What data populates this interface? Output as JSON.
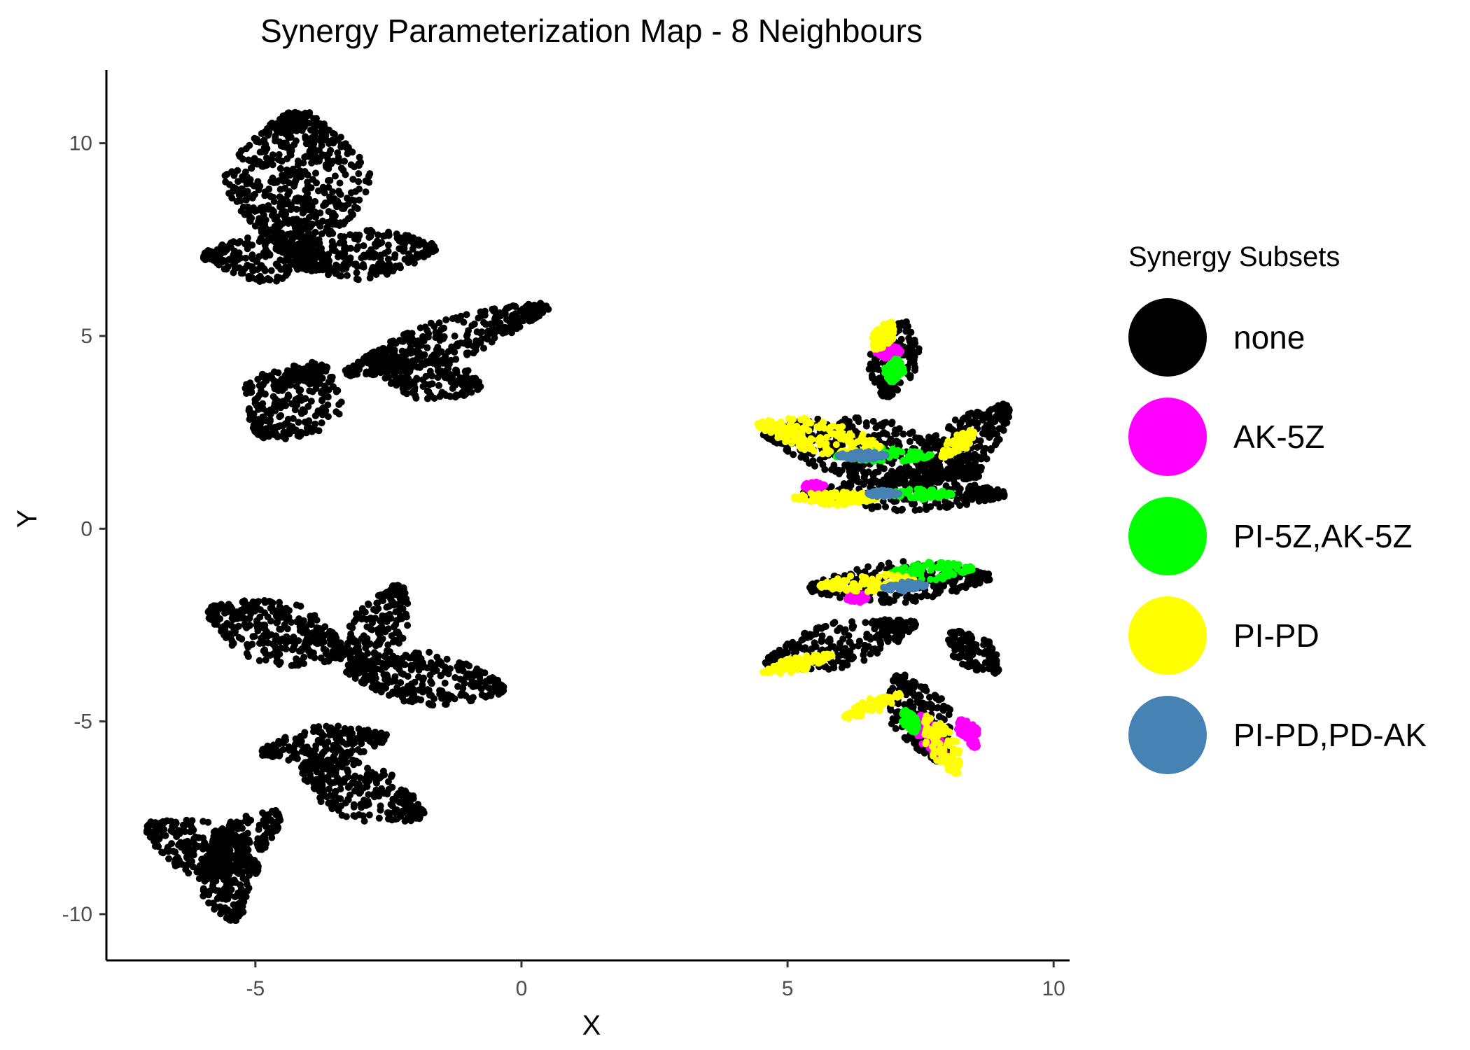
{
  "chart_data": {
    "type": "scatter",
    "title": "Synergy Parameterization Map - 8 Neighbours",
    "xlabel": "X",
    "ylabel": "Y",
    "xlim": [
      -7.8,
      10.3
    ],
    "ylim": [
      -11.2,
      11.9
    ],
    "x_ticks": [
      -5,
      0,
      5,
      10
    ],
    "y_ticks": [
      -10,
      -5,
      0,
      5,
      10
    ],
    "x_tick_labels": [
      "-5",
      "0",
      "5",
      "10"
    ],
    "y_tick_labels": [
      "-10",
      "-5",
      "0",
      "5",
      "10"
    ],
    "grid": false,
    "legend": {
      "title": "Synergy Subsets",
      "position": "right",
      "entries": [
        {
          "label": "none",
          "color": "#000000"
        },
        {
          "label": "AK-5Z",
          "color": "#FF00FF"
        },
        {
          "label": "PI-5Z,AK-5Z",
          "color": "#00FF00"
        },
        {
          "label": "PI-PD",
          "color": "#FFFF00"
        },
        {
          "label": "PI-PD,PD-AK",
          "color": "#4682B4"
        }
      ]
    },
    "series": [
      {
        "name": "none",
        "color": "#000000",
        "clusters": [
          {
            "center": [
              -4.2,
              9.0
            ],
            "angle": 90,
            "length": 3.6,
            "width": 2.8
          },
          {
            "center": [
              -4.8,
              7.0
            ],
            "angle": 175,
            "length": 2.4,
            "width": 1.2
          },
          {
            "center": [
              -2.9,
              7.1
            ],
            "angle": 10,
            "length": 2.6,
            "width": 1.3
          },
          {
            "center": [
              -1.4,
              4.9
            ],
            "angle": 25,
            "length": 4.2,
            "width": 1.1
          },
          {
            "center": [
              -1.8,
              4.0
            ],
            "angle": -20,
            "length": 2.2,
            "width": 1.3
          },
          {
            "center": [
              -4.3,
              3.3
            ],
            "angle": -120,
            "length": 2.2,
            "width": 2.0
          },
          {
            "center": [
              -4.6,
              -2.7
            ],
            "angle": -25,
            "length": 2.8,
            "width": 1.7
          },
          {
            "center": [
              -2.7,
              -2.6
            ],
            "angle": 70,
            "length": 2.4,
            "width": 1.1
          },
          {
            "center": [
              -1.8,
              -3.9
            ],
            "angle": -10,
            "length": 3.0,
            "width": 1.4
          },
          {
            "center": [
              -3.7,
              -5.6
            ],
            "angle": 10,
            "length": 2.4,
            "width": 1.0
          },
          {
            "center": [
              -3.0,
              -6.8
            ],
            "angle": -30,
            "length": 2.6,
            "width": 1.6
          },
          {
            "center": [
              -6.0,
              -8.3
            ],
            "angle": 150,
            "length": 2.4,
            "width": 1.4
          },
          {
            "center": [
              -5.6,
              -9.3
            ],
            "angle": -75,
            "length": 1.8,
            "width": 1.0
          },
          {
            "center": [
              -5.2,
              -8.0
            ],
            "angle": 45,
            "length": 1.8,
            "width": 1.0
          },
          {
            "center": [
              7.0,
              4.4
            ],
            "angle": 80,
            "length": 2.0,
            "width": 1.0
          },
          {
            "center": [
              6.6,
              2.0
            ],
            "angle": -15,
            "length": 4.2,
            "width": 1.7
          },
          {
            "center": [
              8.3,
              2.2
            ],
            "angle": 50,
            "length": 2.6,
            "width": 1.2
          },
          {
            "center": [
              7.2,
              0.9
            ],
            "angle": 0,
            "length": 3.8,
            "width": 0.9
          },
          {
            "center": [
              7.1,
              -1.4
            ],
            "angle": 5,
            "length": 3.4,
            "width": 1.1
          },
          {
            "center": [
              6.0,
              -3.0
            ],
            "angle": 20,
            "length": 3.0,
            "width": 1.2
          },
          {
            "center": [
              8.5,
              -3.2
            ],
            "angle": -50,
            "length": 1.4,
            "width": 0.8
          },
          {
            "center": [
              7.5,
              -4.9
            ],
            "angle": -70,
            "length": 2.4,
            "width": 1.2
          }
        ]
      },
      {
        "name": "AK-5Z",
        "color": "#FF00FF",
        "clusters": [
          {
            "center": [
              6.9,
              4.6
            ],
            "angle": 0,
            "length": 0.5,
            "width": 0.4
          },
          {
            "center": [
              5.5,
              1.1
            ],
            "angle": 0,
            "length": 0.4,
            "width": 0.3
          },
          {
            "center": [
              6.3,
              -1.8
            ],
            "angle": 0,
            "length": 0.4,
            "width": 0.3
          },
          {
            "center": [
              7.7,
              -5.4
            ],
            "angle": -70,
            "length": 1.2,
            "width": 0.5
          },
          {
            "center": [
              8.4,
              -5.3
            ],
            "angle": -70,
            "length": 0.8,
            "width": 0.4
          }
        ]
      },
      {
        "name": "PI-5Z,AK-5Z",
        "color": "#00FF00",
        "clusters": [
          {
            "center": [
              7.0,
              4.1
            ],
            "angle": 80,
            "length": 0.6,
            "width": 0.4
          },
          {
            "center": [
              6.8,
              1.9
            ],
            "angle": 0,
            "length": 1.8,
            "width": 0.4
          },
          {
            "center": [
              7.5,
              0.9
            ],
            "angle": 0,
            "length": 1.2,
            "width": 0.3
          },
          {
            "center": [
              7.7,
              -1.1
            ],
            "angle": 5,
            "length": 1.6,
            "width": 0.5
          },
          {
            "center": [
              7.3,
              -5.0
            ],
            "angle": -70,
            "length": 0.6,
            "width": 0.3
          }
        ]
      },
      {
        "name": "PI-PD",
        "color": "#FFFF00",
        "clusters": [
          {
            "center": [
              6.8,
              5.0
            ],
            "angle": 70,
            "length": 0.8,
            "width": 0.4
          },
          {
            "center": [
              5.6,
              2.4
            ],
            "angle": -15,
            "length": 2.4,
            "width": 0.9
          },
          {
            "center": [
              8.2,
              2.2
            ],
            "angle": 50,
            "length": 0.9,
            "width": 0.4
          },
          {
            "center": [
              5.9,
              0.8
            ],
            "angle": 0,
            "length": 1.6,
            "width": 0.4
          },
          {
            "center": [
              6.5,
              -1.4
            ],
            "angle": 5,
            "length": 1.8,
            "width": 0.5
          },
          {
            "center": [
              5.2,
              -3.5
            ],
            "angle": 20,
            "length": 1.4,
            "width": 0.4
          },
          {
            "center": [
              6.6,
              -4.6
            ],
            "angle": 30,
            "length": 1.2,
            "width": 0.4
          },
          {
            "center": [
              7.9,
              -5.6
            ],
            "angle": -70,
            "length": 1.6,
            "width": 0.6
          }
        ]
      },
      {
        "name": "PI-PD,PD-AK",
        "color": "#4682B4",
        "clusters": [
          {
            "center": [
              6.4,
              1.9
            ],
            "angle": 0,
            "length": 0.9,
            "width": 0.25
          },
          {
            "center": [
              6.8,
              0.9
            ],
            "angle": 0,
            "length": 0.6,
            "width": 0.2
          },
          {
            "center": [
              7.2,
              -1.5
            ],
            "angle": 5,
            "length": 0.8,
            "width": 0.25
          }
        ]
      }
    ]
  }
}
